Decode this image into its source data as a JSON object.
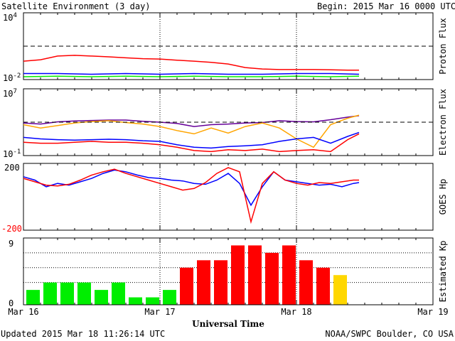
{
  "header": {
    "title": "Satellite Environment (3 day)",
    "begin_label": "Begin:",
    "begin_value": "2015 Mar 16 0000 UTC"
  },
  "footer": {
    "updated": "Updated 2015 Mar 18 11:26:14 UTC",
    "credit": "NOAA/SWPC Boulder, CO USA"
  },
  "x_axis": {
    "title": "Universal Time",
    "ticks": [
      "Mar 16",
      "Mar 17",
      "Mar 18",
      "Mar 19"
    ],
    "range_hours": [
      0,
      72
    ],
    "now_hours": 59.4
  },
  "colors": {
    "red": "#ff0000",
    "blue": "#0000ff",
    "green": "#00ee00",
    "orange": "#ffa500",
    "purple": "#660099",
    "yellow": "#ffd700"
  },
  "chart_data": [
    {
      "type": "line",
      "panel": "proton",
      "ylabel": "Proton Flux",
      "yscale": "log",
      "ylim": [
        0.01,
        10000
      ],
      "ticks": {
        "top_base": "10",
        "top_exp": "4",
        "bottom_base": "10",
        "bottom_exp": "-2"
      },
      "threshold": 10,
      "series": [
        {
          "color": "red",
          "x": [
            0,
            3,
            6,
            9,
            12,
            15,
            18,
            21,
            24,
            27,
            30,
            33,
            36,
            39,
            42,
            45,
            48,
            51,
            54,
            57,
            59
          ],
          "y": [
            0.45,
            0.6,
            1.3,
            1.5,
            1.3,
            1.1,
            0.9,
            0.75,
            0.7,
            0.55,
            0.45,
            0.35,
            0.25,
            0.12,
            0.09,
            0.08,
            0.08,
            0.08,
            0.075,
            0.07,
            0.07
          ]
        },
        {
          "color": "blue",
          "x": [
            0,
            6,
            12,
            18,
            24,
            30,
            36,
            42,
            48,
            54,
            59
          ],
          "y": [
            0.035,
            0.035,
            0.03,
            0.035,
            0.03,
            0.035,
            0.03,
            0.03,
            0.035,
            0.035,
            0.03
          ]
        },
        {
          "color": "green",
          "x": [
            0,
            6,
            12,
            18,
            24,
            30,
            36,
            42,
            48,
            54,
            59
          ],
          "y": [
            0.018,
            0.02,
            0.018,
            0.02,
            0.018,
            0.02,
            0.018,
            0.018,
            0.02,
            0.018,
            0.02
          ]
        }
      ]
    },
    {
      "type": "line",
      "panel": "electron",
      "ylabel": "Electron Flux",
      "yscale": "log",
      "ylim": [
        0.1,
        10000000
      ],
      "ticks": {
        "top_base": "10",
        "top_exp": "7",
        "bottom_base": "10",
        "bottom_exp": "-1"
      },
      "threshold": 1000,
      "series": [
        {
          "color": "purple",
          "x": [
            0,
            3,
            6,
            9,
            12,
            15,
            18,
            21,
            24,
            27,
            30,
            33,
            36,
            39,
            42,
            45,
            48,
            51,
            54,
            57,
            59
          ],
          "y": [
            800,
            600,
            1100,
            1400,
            1600,
            1800,
            1800,
            1300,
            1000,
            700,
            300,
            500,
            600,
            800,
            900,
            1500,
            1200,
            1100,
            2000,
            4000,
            6000
          ]
        },
        {
          "color": "orange",
          "x": [
            0,
            3,
            6,
            9,
            12,
            15,
            18,
            21,
            24,
            27,
            30,
            33,
            36,
            39,
            42,
            45,
            48,
            51,
            54,
            57,
            59
          ],
          "y": [
            500,
            200,
            400,
            800,
            1200,
            1500,
            900,
            600,
            300,
            100,
            40,
            200,
            50,
            300,
            800,
            200,
            10,
            1,
            500,
            3000,
            7000
          ]
        },
        {
          "color": "blue",
          "x": [
            0,
            3,
            6,
            9,
            12,
            15,
            18,
            21,
            24,
            27,
            30,
            33,
            36,
            39,
            42,
            45,
            48,
            51,
            54,
            57,
            59
          ],
          "y": [
            15,
            10,
            8,
            7,
            8,
            9,
            8,
            6,
            5,
            2,
            1,
            0.8,
            1.2,
            1.5,
            2,
            5,
            10,
            15,
            3,
            20,
            60
          ]
        },
        {
          "color": "red",
          "x": [
            0,
            3,
            6,
            9,
            12,
            15,
            18,
            21,
            24,
            27,
            30,
            33,
            36,
            39,
            42,
            45,
            48,
            51,
            54,
            57,
            59
          ],
          "y": [
            4,
            3,
            3,
            4,
            5,
            4,
            4,
            3,
            2,
            1,
            0.4,
            0.3,
            0.5,
            0.4,
            0.6,
            0.3,
            0.4,
            0.5,
            0.3,
            8,
            40
          ]
        }
      ]
    },
    {
      "type": "line",
      "panel": "goes_hp",
      "ylabel": "GOES Hp",
      "ylim": [
        -200,
        200
      ],
      "ticks": {
        "top": "200",
        "bottom": "-200"
      },
      "series": [
        {
          "color": "blue",
          "x": [
            0,
            2,
            4,
            6,
            8,
            10,
            12,
            14,
            16,
            18,
            20,
            22,
            24,
            26,
            28,
            30,
            32,
            34,
            36,
            38,
            40,
            42,
            44,
            46,
            48,
            50,
            52,
            54,
            56,
            58,
            59
          ],
          "y": [
            120,
            100,
            60,
            80,
            70,
            90,
            110,
            140,
            160,
            150,
            130,
            115,
            110,
            100,
            95,
            80,
            75,
            100,
            140,
            80,
            -50,
            60,
            150,
            100,
            90,
            80,
            70,
            75,
            60,
            80,
            85
          ]
        },
        {
          "color": "red",
          "x": [
            0,
            2,
            4,
            6,
            8,
            10,
            12,
            14,
            16,
            18,
            20,
            22,
            24,
            26,
            28,
            30,
            32,
            34,
            36,
            38,
            40,
            42,
            44,
            46,
            48,
            50,
            52,
            54,
            56,
            58,
            59
          ],
          "y": [
            110,
            90,
            70,
            65,
            75,
            100,
            130,
            150,
            165,
            140,
            120,
            100,
            80,
            60,
            40,
            50,
            85,
            140,
            175,
            150,
            -150,
            80,
            150,
            100,
            80,
            70,
            85,
            80,
            90,
            100,
            100
          ]
        }
      ]
    },
    {
      "type": "bar",
      "panel": "kp",
      "ylabel": "Estimated Kp",
      "ylim": [
        0,
        9
      ],
      "ticks": {
        "top": "9",
        "bottom": "0"
      },
      "bar_width_hours": 3,
      "values": [
        2,
        3,
        3,
        3,
        2,
        3,
        1,
        1,
        2,
        5,
        6,
        6,
        8,
        8,
        7,
        8,
        6,
        5,
        4
      ],
      "colors": [
        "green",
        "green",
        "green",
        "green",
        "green",
        "green",
        "green",
        "green",
        "green",
        "red",
        "red",
        "red",
        "red",
        "red",
        "red",
        "red",
        "red",
        "red",
        "yellow"
      ]
    }
  ]
}
